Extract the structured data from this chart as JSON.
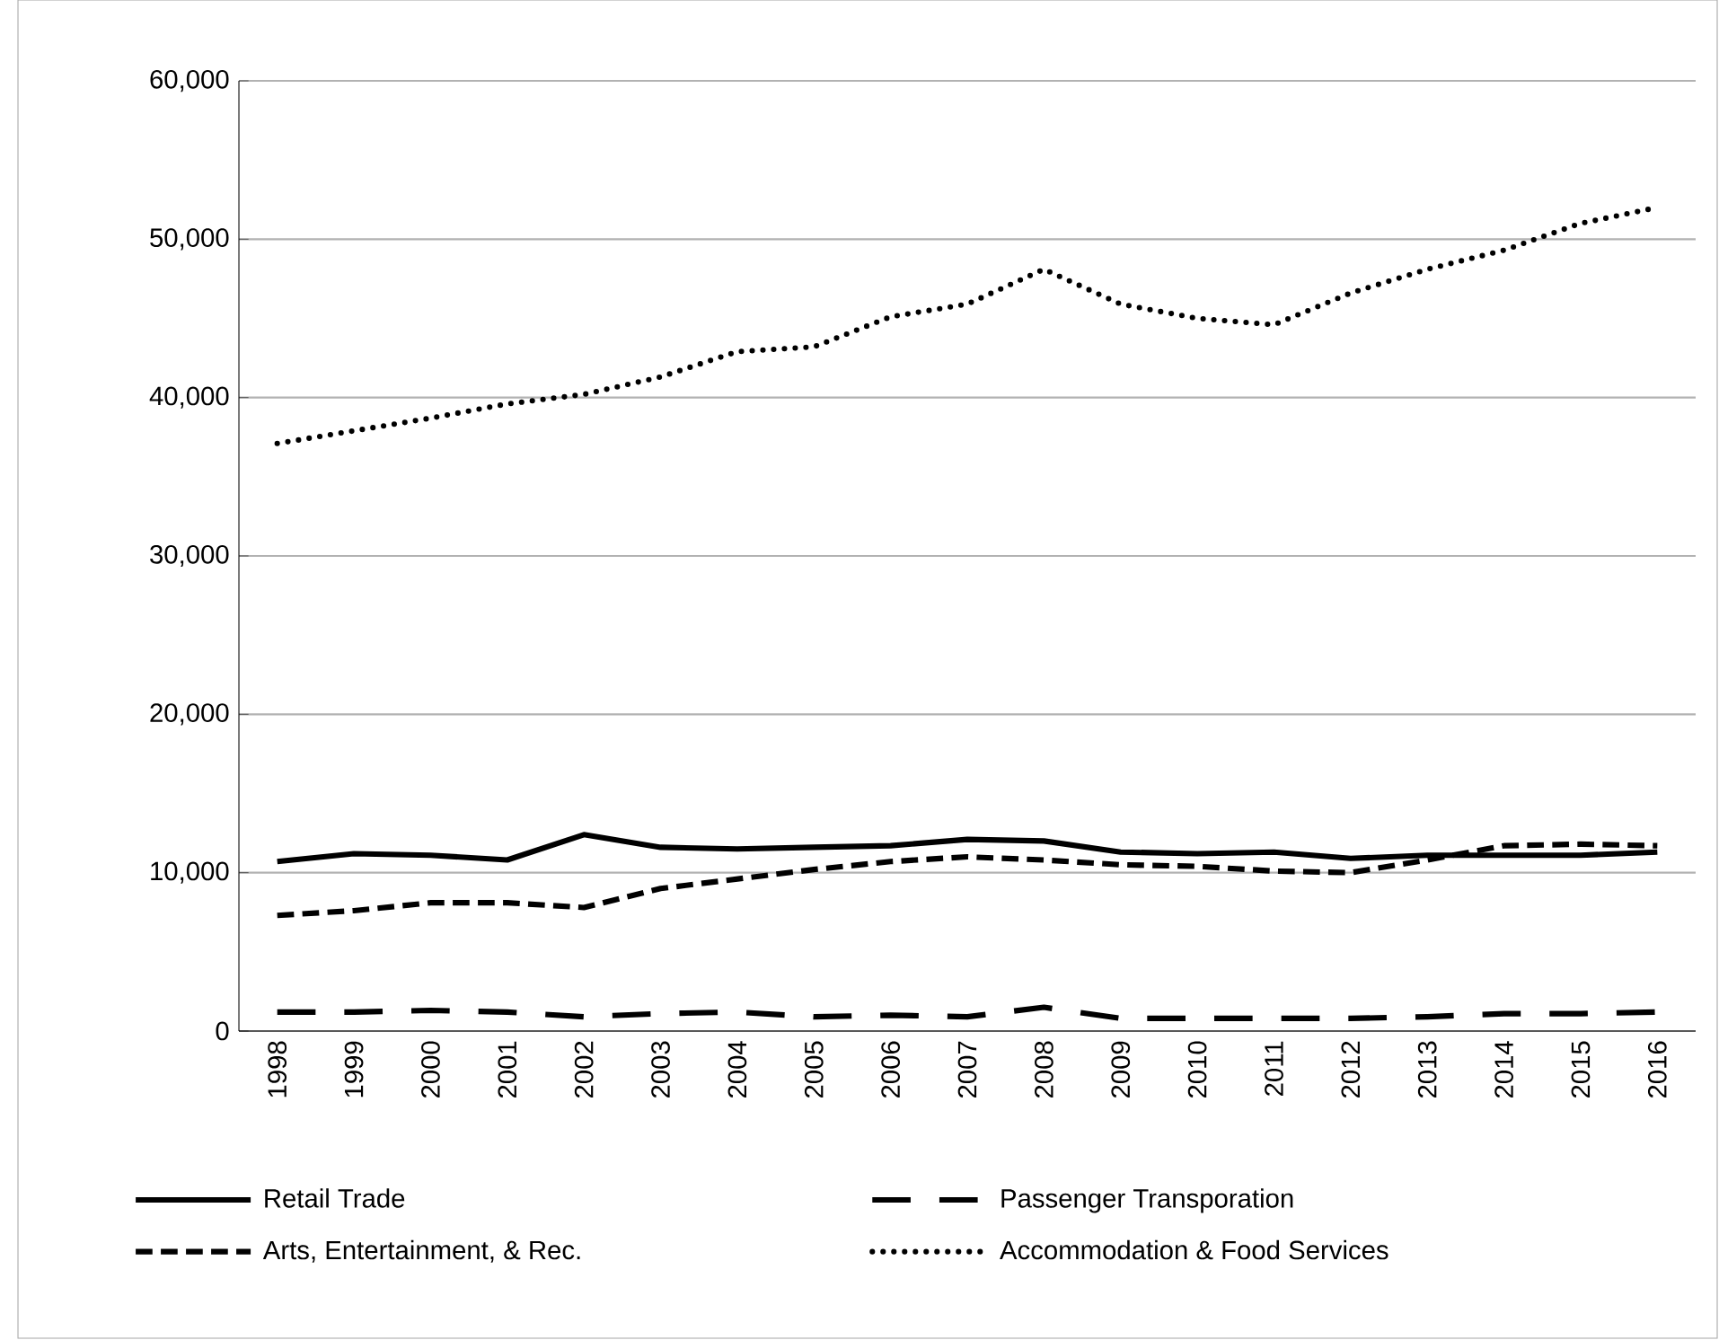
{
  "chart_data": {
    "type": "line",
    "categories": [
      "1998",
      "1999",
      "2000",
      "2001",
      "2002",
      "2003",
      "2004",
      "2005",
      "2006",
      "2007",
      "2008",
      "2009",
      "2010",
      "2011",
      "2012",
      "2013",
      "2014",
      "2015",
      "2016"
    ],
    "series": [
      {
        "name": "Retail Trade",
        "color": "#000000",
        "line_style": "solid",
        "values": [
          10700,
          11200,
          11100,
          10800,
          12400,
          11600,
          11500,
          11600,
          11700,
          12100,
          12000,
          11300,
          11200,
          11300,
          10900,
          11100,
          11100,
          11100,
          11300
        ]
      },
      {
        "name": "Passenger Transporation",
        "color": "#000000",
        "line_style": "long dashed",
        "values": [
          1200,
          1200,
          1300,
          1200,
          900,
          1100,
          1200,
          900,
          1000,
          900,
          1500,
          800,
          800,
          800,
          800,
          900,
          1100,
          1100,
          1200
        ]
      },
      {
        "name": "Arts, Entertainment, & Rec.",
        "color": "#000000",
        "line_style": "dashed",
        "values": [
          7300,
          7600,
          8100,
          8100,
          7800,
          9000,
          9600,
          10200,
          10700,
          11000,
          10800,
          10500,
          10400,
          10100,
          10000,
          10800,
          11700,
          11800,
          11700
        ]
      },
      {
        "name": "Accommodation & Food Services",
        "color": "#000000",
        "line_style": "dotted",
        "values": [
          37100,
          37900,
          38700,
          39600,
          40200,
          41300,
          42900,
          43200,
          45100,
          45900,
          48100,
          45900,
          45000,
          44600,
          46600,
          48100,
          49300,
          51000,
          52000
        ]
      }
    ],
    "ylim": [
      0,
      60000
    ],
    "yticks": [
      0,
      {
        "value": 10000,
        "label": "10,000"
      },
      {
        "value": 20000,
        "label": "20,000"
      },
      {
        "value": 30000,
        "label": "30,000"
      },
      {
        "value": 40000,
        "label": "40,000"
      },
      {
        "value": 50000,
        "label": "50,000"
      },
      {
        "value": 60000,
        "label": "60,000"
      }
    ],
    "grid": "y",
    "legend": "bottom",
    "marker": "none"
  }
}
